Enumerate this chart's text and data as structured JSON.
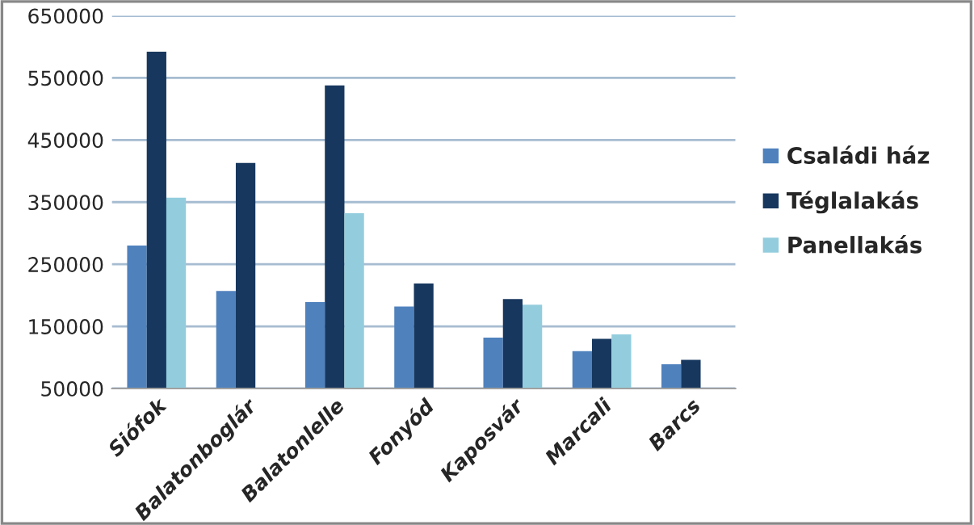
{
  "chart_data": {
    "type": "bar",
    "categories": [
      "Siófok",
      "Balatonboglár",
      "Balatonlelle",
      "Fonyód",
      "Kaposvár",
      "Marcali",
      "Barcs"
    ],
    "series": [
      {
        "name": "Családi ház",
        "color": "#4f81bd",
        "values": [
          280000,
          207000,
          189000,
          182000,
          132000,
          110000,
          89000
        ]
      },
      {
        "name": "Téglalakás",
        "color": "#17375e",
        "values": [
          592000,
          413000,
          538000,
          219000,
          194000,
          130000,
          96000
        ]
      },
      {
        "name": "Panellakás",
        "color": "#93cddd",
        "values": [
          357000,
          null,
          332000,
          null,
          185000,
          137000,
          null
        ]
      }
    ],
    "ylim": [
      50000,
      650000
    ],
    "yticks": [
      50000,
      150000,
      250000,
      350000,
      450000,
      550000,
      650000
    ],
    "grid": "y",
    "legend": "right"
  }
}
